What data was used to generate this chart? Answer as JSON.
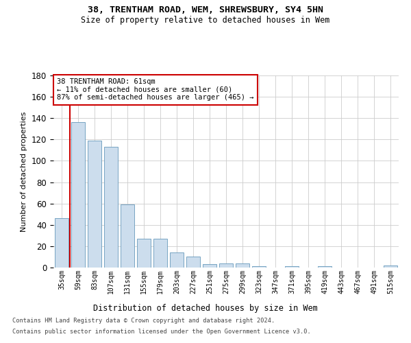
{
  "title1": "38, TRENTHAM ROAD, WEM, SHREWSBURY, SY4 5HN",
  "title2": "Size of property relative to detached houses in Wem",
  "xlabel": "Distribution of detached houses by size in Wem",
  "ylabel": "Number of detached properties",
  "categories": [
    "35sqm",
    "59sqm",
    "83sqm",
    "107sqm",
    "131sqm",
    "155sqm",
    "179sqm",
    "203sqm",
    "227sqm",
    "251sqm",
    "275sqm",
    "299sqm",
    "323sqm",
    "347sqm",
    "371sqm",
    "395sqm",
    "419sqm",
    "443sqm",
    "467sqm",
    "491sqm",
    "515sqm"
  ],
  "values": [
    46,
    136,
    119,
    113,
    59,
    27,
    27,
    14,
    10,
    3,
    4,
    4,
    1,
    0,
    1,
    0,
    1,
    0,
    0,
    0,
    2
  ],
  "bar_color": "#ccdded",
  "bar_edge_color": "#6699bb",
  "annotation_title": "38 TRENTHAM ROAD: 61sqm",
  "annotation_line1": "← 11% of detached houses are smaller (60)",
  "annotation_line2": "87% of semi-detached houses are larger (465) →",
  "vline_color": "#cc0000",
  "annotation_box_color": "#ffffff",
  "annotation_box_edge": "#cc0000",
  "ylim": [
    0,
    180
  ],
  "yticks": [
    0,
    20,
    40,
    60,
    80,
    100,
    120,
    140,
    160,
    180
  ],
  "grid_color": "#cccccc",
  "background_color": "#ffffff",
  "footer1": "Contains HM Land Registry data © Crown copyright and database right 2024.",
  "footer2": "Contains public sector information licensed under the Open Government Licence v3.0."
}
